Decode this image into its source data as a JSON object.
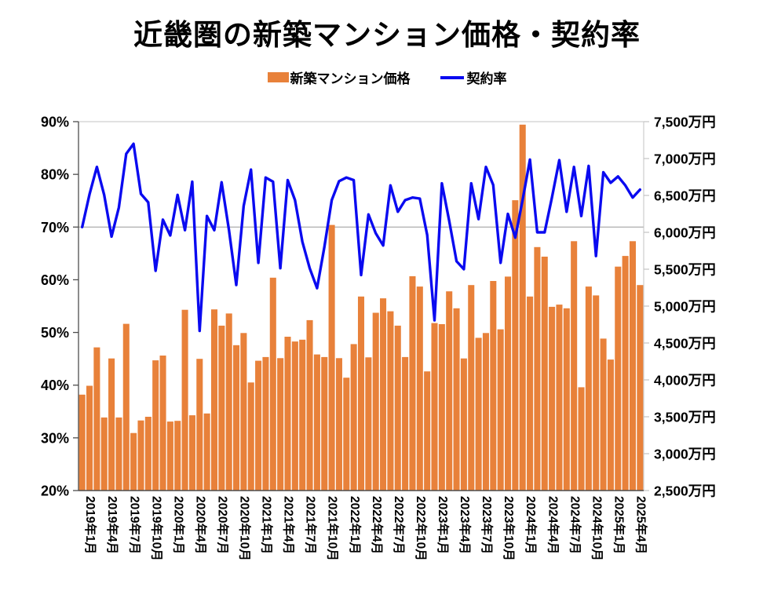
{
  "title": "近畿圏の新築マンション価格・契約率",
  "legend": [
    {
      "label": "新築マンション価格",
      "swatch": "bar"
    },
    {
      "label": "契約率",
      "swatch": "line"
    }
  ],
  "colors": {
    "bar": "#E8813A",
    "line": "#0A0AF0",
    "grid": "#999999",
    "axis_dark": "#4d4d4d",
    "border_light": "#c3c3c3",
    "text": "#000000",
    "background": "#FFFFFF"
  },
  "chart_data": {
    "type": "bar",
    "subtype": "bar+line combo, monthly",
    "title": "近畿圏の新築マンション価格・契約率",
    "x_start": "2019年1月",
    "x_end": "2025年5月",
    "x_tick_labels": [
      "2019年1月",
      "2019年4月",
      "2019年7月",
      "2019年10月",
      "2020年1月",
      "2020年4月",
      "2020年7月",
      "2020年10月",
      "2021年1月",
      "2021年4月",
      "2021年7月",
      "2021年10月",
      "2022年1月",
      "2022年4月",
      "2022年7月",
      "2022年10月",
      "2023年1月",
      "2023年4月",
      "2023年7月",
      "2023年10月",
      "2024年1月",
      "2024年4月",
      "2024年7月",
      "2024年10月",
      "2025年1月",
      "2025年4月"
    ],
    "x_tick_every_n_months": 3,
    "series": [
      {
        "name": "新築マンション価格",
        "type": "bar",
        "axis": "right",
        "unit": "万円",
        "values": [
          3800,
          3920,
          4440,
          3490,
          4290,
          3490,
          4760,
          3280,
          3450,
          3500,
          4265,
          4330,
          3435,
          3445,
          4950,
          3520,
          4285,
          3545,
          4955,
          4735,
          4900,
          4470,
          4635,
          3965,
          4260,
          4310,
          5385,
          4295,
          4585,
          4520,
          4545,
          4810,
          4345,
          4310,
          6100,
          4295,
          4030,
          4485,
          5130,
          4305,
          4910,
          5105,
          4930,
          4735,
          4310,
          5405,
          5265,
          4115,
          4770,
          4755,
          5200,
          4970,
          4290,
          5285,
          4570,
          4635,
          5340,
          4685,
          5400,
          6435,
          7460,
          5130,
          5800,
          5670,
          4990,
          5020,
          4970,
          5880,
          3900,
          5265,
          5145,
          4560,
          4275,
          5535,
          5680,
          5880,
          5285
        ]
      },
      {
        "name": "契約率",
        "type": "line",
        "axis": "left",
        "unit": "%",
        "values": [
          70.0,
          76.2,
          81.4,
          76.1,
          68.2,
          73.7,
          83.9,
          85.8,
          76.3,
          74.7,
          61.7,
          71.4,
          68.4,
          76.1,
          69.4,
          78.6,
          50.3,
          72.1,
          69.4,
          78.5,
          69.4,
          59.0,
          74.0,
          80.9,
          63.2,
          79.4,
          78.6,
          62.2,
          78.9,
          75.1,
          67.2,
          62.2,
          58.4,
          66.2,
          75.1,
          78.7,
          79.4,
          78.9,
          60.9,
          72.4,
          68.8,
          66.5,
          77.9,
          72.9,
          75.1,
          75.6,
          75.4,
          68.5,
          52.3,
          78.3,
          71.2,
          63.5,
          62.0,
          78.3,
          71.5,
          81.4,
          78.0,
          63.2,
          72.5,
          68.0,
          75.1,
          82.8,
          69.0,
          69.0,
          75.6,
          82.7,
          72.9,
          81.4,
          72.1,
          81.6,
          64.5,
          80.4,
          78.4,
          79.6,
          77.9,
          75.6,
          77.1
        ]
      }
    ],
    "left_axis": {
      "min": 20,
      "max": 90,
      "step": 10,
      "tick_labels": [
        "90%",
        "80%",
        "70%",
        "60%",
        "50%",
        "40%",
        "30%",
        "20%"
      ],
      "gridline_at": 70
    },
    "right_axis": {
      "min": 2500,
      "max": 7500,
      "step": 500,
      "tick_labels": [
        "7,500万円",
        "7,000万円",
        "6,500万円",
        "6,000万円",
        "5,500万円",
        "5,000万円",
        "4,500万円",
        "4,000万円",
        "3,500万円",
        "3,000万円",
        "2,500万円"
      ]
    },
    "grid": "single horizontal gridline at 70%",
    "legend_position": "top-center"
  }
}
